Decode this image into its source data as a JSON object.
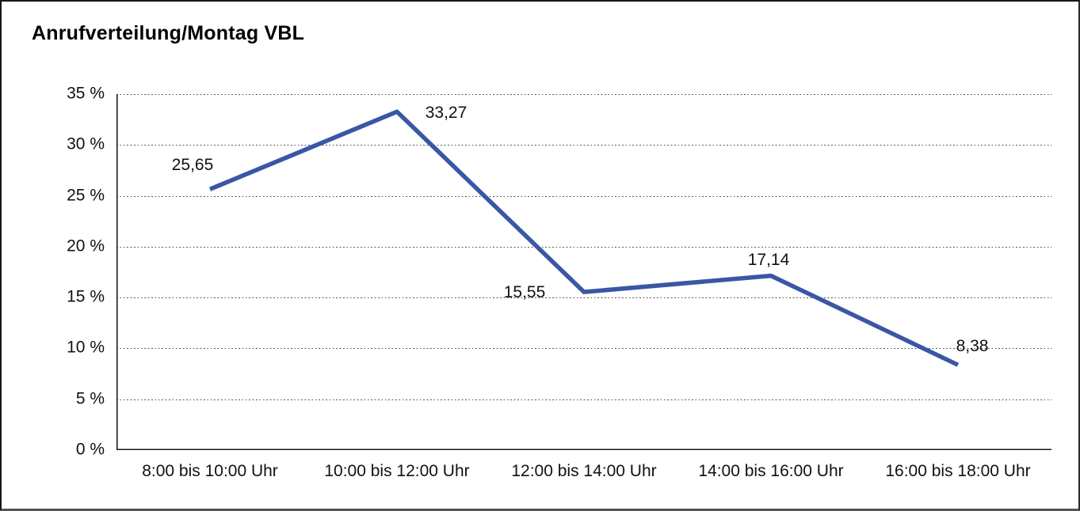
{
  "window": {
    "background": "#ffffff",
    "frame_border_color": "#161616"
  },
  "chart_data": {
    "type": "line",
    "title": "Anrufverteilung/Montag VBL",
    "categories": [
      "8:00 bis 10:00 Uhr",
      "10:00 bis 12:00 Uhr",
      "12:00 bis 14:00 Uhr",
      "14:00 bis 16:00 Uhr",
      "16:00 bis 18:00 Uhr"
    ],
    "values": [
      25.65,
      33.27,
      15.55,
      17.14,
      8.38
    ],
    "point_labels": [
      "25,65",
      "33,27",
      "15,55",
      "17,14",
      "8,38"
    ],
    "y_tick_labels": [
      "35 %",
      "30 %",
      "25 %",
      "20 %",
      "15 %",
      "10 %",
      "5 %",
      "0 %"
    ],
    "y_tick_values": [
      35,
      30,
      25,
      20,
      15,
      10,
      5,
      0
    ],
    "ylim": [
      0,
      35
    ],
    "y_step": 5,
    "xlabel": "",
    "ylabel": "",
    "grid": "horizontal dotted",
    "legend_position": "none",
    "line_color": "#3A57A5",
    "axis_color": "#1a1a1a",
    "grid_color": "#555555",
    "text_color": "#111111"
  }
}
